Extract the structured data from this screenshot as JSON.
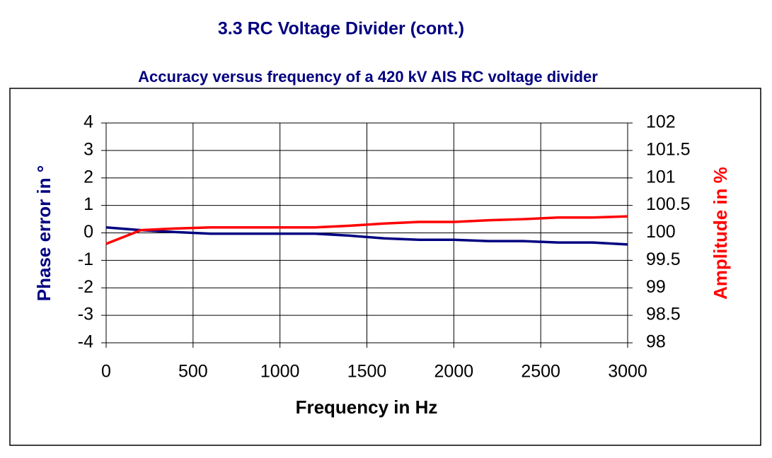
{
  "page_title": "3.3 RC Voltage Divider (cont.)",
  "chart_data": {
    "type": "line",
    "title": "Accuracy versus frequency of a 420 kV AIS RC voltage divider",
    "x_label": "Frequency in Hz",
    "y_label": "Phase error in °",
    "y2_label": "Amplitude in %",
    "x": [
      0,
      200,
      400,
      600,
      800,
      1000,
      1200,
      1400,
      1600,
      1800,
      2000,
      2200,
      2400,
      2600,
      2800,
      3000
    ],
    "series": [
      {
        "color": "#000080",
        "values": [
          0.2,
          0.1,
          0.03,
          -0.03,
          -0.03,
          -0.03,
          -0.03,
          -0.1,
          -0.2,
          -0.25,
          -0.25,
          -0.3,
          -0.3,
          -0.35,
          -0.35,
          -0.42
        ]
      },
      {
        "color": "#ff0000",
        "axis": "y2",
        "values": [
          99.8,
          100.05,
          100.08,
          100.1,
          100.1,
          100.1,
          100.1,
          100.13,
          100.17,
          100.2,
          100.2,
          100.23,
          100.25,
          100.28,
          100.28,
          100.3
        ]
      }
    ],
    "xlim": [
      0,
      3000
    ],
    "xticks": [
      0,
      500,
      1000,
      1500,
      2000,
      2500,
      3000
    ],
    "ylim": [
      -4,
      4
    ],
    "yticks": [
      -4,
      -3,
      -2,
      -1,
      0,
      1,
      2,
      3,
      4
    ],
    "y2lim": [
      98,
      102
    ],
    "y2ticks": [
      98,
      98.5,
      99,
      99.5,
      100,
      100.5,
      101,
      101.5,
      102
    ],
    "grid": true
  }
}
